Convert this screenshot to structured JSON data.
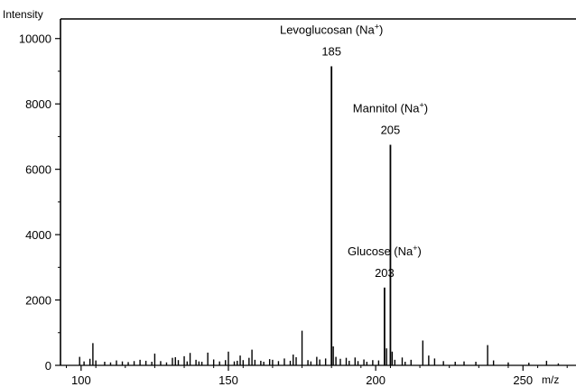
{
  "chart_data": {
    "type": "bar",
    "ylabel": "Intensity",
    "xlabel": "m/z",
    "xlim": [
      93,
      268
    ],
    "ylim": [
      0,
      10600
    ],
    "x_ticks": [
      100,
      150,
      200,
      250
    ],
    "y_ticks": [
      0,
      2000,
      4000,
      6000,
      8000,
      10000
    ],
    "grid": false,
    "series": [
      {
        "values": [
          [
            99.5,
            260
          ],
          [
            101,
            120
          ],
          [
            103,
            200
          ],
          [
            104,
            680
          ],
          [
            105,
            150
          ],
          [
            108,
            110
          ],
          [
            110,
            90
          ],
          [
            112,
            150
          ],
          [
            114,
            120
          ],
          [
            116,
            100
          ],
          [
            118,
            130
          ],
          [
            120,
            170
          ],
          [
            122,
            140
          ],
          [
            124,
            110
          ],
          [
            125,
            360
          ],
          [
            127,
            130
          ],
          [
            129,
            90
          ],
          [
            131,
            230
          ],
          [
            132,
            250
          ],
          [
            133,
            160
          ],
          [
            135,
            280
          ],
          [
            136,
            120
          ],
          [
            137,
            380
          ],
          [
            139,
            170
          ],
          [
            140,
            120
          ],
          [
            141,
            110
          ],
          [
            143,
            390
          ],
          [
            145,
            180
          ],
          [
            147,
            120
          ],
          [
            149,
            160
          ],
          [
            150,
            420
          ],
          [
            152,
            120
          ],
          [
            153,
            140
          ],
          [
            154,
            300
          ],
          [
            155,
            160
          ],
          [
            157,
            230
          ],
          [
            158,
            480
          ],
          [
            159,
            170
          ],
          [
            161,
            140
          ],
          [
            162,
            110
          ],
          [
            164,
            190
          ],
          [
            165,
            170
          ],
          [
            167,
            130
          ],
          [
            169,
            210
          ],
          [
            171,
            140
          ],
          [
            172,
            330
          ],
          [
            173,
            250
          ],
          [
            175,
            1060
          ],
          [
            177,
            160
          ],
          [
            178,
            120
          ],
          [
            180,
            260
          ],
          [
            181,
            180
          ],
          [
            183,
            210
          ],
          [
            185,
            9150
          ],
          [
            185.6,
            580
          ],
          [
            186.5,
            260
          ],
          [
            188,
            200
          ],
          [
            190,
            230
          ],
          [
            191,
            140
          ],
          [
            193,
            240
          ],
          [
            194,
            130
          ],
          [
            196,
            180
          ],
          [
            197,
            110
          ],
          [
            199,
            160
          ],
          [
            201,
            150
          ],
          [
            203,
            2380
          ],
          [
            203.7,
            520
          ],
          [
            205,
            6750
          ],
          [
            205.6,
            420
          ],
          [
            206.5,
            170
          ],
          [
            209,
            240
          ],
          [
            210,
            110
          ],
          [
            212,
            170
          ],
          [
            216,
            760
          ],
          [
            218,
            300
          ],
          [
            220,
            210
          ],
          [
            223,
            130
          ],
          [
            227,
            110
          ],
          [
            230,
            120
          ],
          [
            234,
            110
          ],
          [
            238,
            620
          ],
          [
            240,
            150
          ],
          [
            245,
            90
          ],
          [
            252,
            80
          ],
          [
            258,
            140
          ],
          [
            262,
            60
          ]
        ]
      }
    ],
    "annotations": [
      {
        "text": "Levoglucosan (Na",
        "sup": "+",
        "close": ")",
        "peak_label": "185",
        "x": 185,
        "y": 9150
      },
      {
        "text": "Mannitol (Na",
        "sup": "+",
        "close": ")",
        "peak_label": "205",
        "x": 205,
        "y": 6750
      },
      {
        "text": "Glucose (Na",
        "sup": "+",
        "close": ")",
        "peak_label": "203",
        "x": 203,
        "y": 2380
      }
    ]
  }
}
